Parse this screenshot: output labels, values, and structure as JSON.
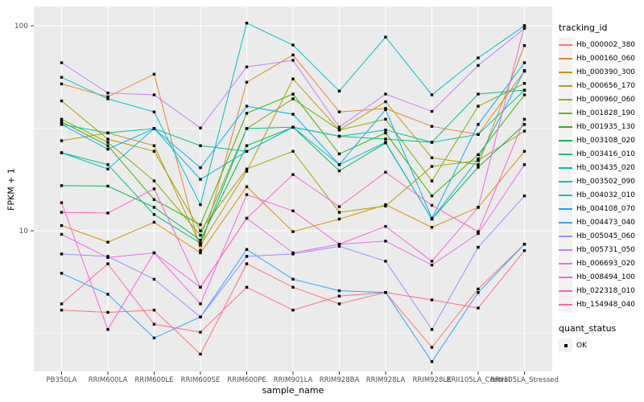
{
  "chart_data": {
    "type": "line",
    "title": "",
    "xlabel": "sample_name",
    "ylabel": "FPKM + 1",
    "y_scale": "log10",
    "ylim": [
      2.05,
      124
    ],
    "y_ticks": [
      10,
      100
    ],
    "y_minor_gridlines": [
      3.162,
      31.62
    ],
    "grid": true,
    "legend_position": "right",
    "panel_bg": "#EBEBEB",
    "gridline_color": "#FFFFFF",
    "tick_label_color": "#4D4D4D",
    "axis_title_color": "#000000",
    "point_marker": {
      "shape": "square",
      "color": "#000000"
    },
    "legend_title": "tracking_id",
    "quant_legend": {
      "title": "quant_status",
      "items": [
        {
          "label": "OK",
          "marker": "black-square"
        }
      ]
    },
    "x_categories": [
      "PB350LA",
      "RRIM600LA",
      "RRIM600LE",
      "RRIM600SE",
      "RRIM600PE",
      "RRIM901LA",
      "RRIM928BA",
      "RRIM928LA",
      "RRIM928LE",
      "RRII105LA_Control",
      "RRII105LA_Stressed"
    ],
    "series": [
      {
        "name": "Hb_000002_380",
        "color": "#F8766D",
        "values": [
          4.1,
          4.0,
          4.1,
          2.5,
          6.9,
          5.3,
          4.4,
          5.0,
          2.7,
          5.2,
          8.6
        ]
      },
      {
        "name": "Hb_000160_060",
        "color": "#EA8331",
        "values": [
          52,
          45,
          58,
          8.0,
          53,
          72,
          38,
          39.5,
          32.3,
          29.5,
          60
        ]
      },
      {
        "name": "Hb_000390_300",
        "color": "#D89000",
        "values": [
          10.6,
          8.8,
          11.0,
          7.8,
          16.4,
          9.9,
          11.4,
          13.4,
          10.4,
          13.0,
          24.4
        ]
      },
      {
        "name": "Hb_000656_170",
        "color": "#C09B00",
        "values": [
          27.5,
          30,
          26,
          8.5,
          19.5,
          55,
          31,
          42.6,
          22.7,
          21,
          80
        ]
      },
      {
        "name": "Hb_000960_060",
        "color": "#A3A500",
        "values": [
          43,
          28,
          24.4,
          10,
          20,
          24.4,
          12.3,
          13.2,
          20.6,
          22,
          30.6
        ]
      },
      {
        "name": "Hb_001828_190",
        "color": "#7CAE00",
        "values": [
          35,
          27,
          17.5,
          9.5,
          31.5,
          44,
          31,
          35,
          17.5,
          40.5,
          52.3
        ]
      },
      {
        "name": "Hb_001935_130",
        "color": "#39B600",
        "values": [
          34,
          26,
          14.2,
          10.7,
          37.4,
          46.4,
          23.7,
          30,
          14.8,
          23.5,
          46
        ]
      },
      {
        "name": "Hb_003108_020",
        "color": "#00BB4E",
        "values": [
          16.6,
          16.5,
          13.0,
          9.0,
          26,
          32,
          19.6,
          26.8,
          11.4,
          20.4,
          33
        ]
      },
      {
        "name": "Hb_003416_010",
        "color": "#00BF7D",
        "values": [
          24,
          21,
          12.0,
          8.7,
          31.5,
          32,
          28.9,
          28,
          27,
          46.4,
          48.5
        ]
      },
      {
        "name": "Hb_003435_020",
        "color": "#00C1A3",
        "values": [
          33,
          30,
          31.5,
          26,
          24.4,
          32,
          28.9,
          31,
          27,
          29.5,
          48.5
        ]
      },
      {
        "name": "Hb_003502_090",
        "color": "#00BFC4",
        "values": [
          56,
          44,
          38,
          13.4,
          103,
          80.5,
          48,
          88,
          46,
          69.7,
          100
        ]
      },
      {
        "name": "Hb_004032_010",
        "color": "#00BBDB",
        "values": [
          24,
          20,
          31.5,
          17.8,
          24.4,
          32,
          21,
          27,
          11.4,
          22.4,
          60.5
        ]
      },
      {
        "name": "Hb_004108_070",
        "color": "#00B0F6",
        "values": [
          33,
          25,
          31.5,
          20.3,
          40.5,
          37,
          21,
          39,
          11.5,
          33,
          66
        ]
      },
      {
        "name": "Hb_004473_040",
        "color": "#35A2FF",
        "values": [
          6.2,
          4.9,
          3.0,
          3.8,
          8.1,
          5.8,
          5.1,
          5.0,
          2.3,
          5.0,
          8.6
        ]
      },
      {
        "name": "Hb_005045_060",
        "color": "#9590FF",
        "values": [
          7.7,
          7.5,
          5.8,
          3.8,
          7.5,
          7.7,
          8.4,
          7.1,
          3.3,
          8.3,
          14.8
        ]
      },
      {
        "name": "Hb_005731_050",
        "color": "#C77CFF",
        "values": [
          66,
          47,
          46,
          31.7,
          63,
          67.8,
          32,
          46.4,
          38.2,
          64,
          97
        ]
      },
      {
        "name": "Hb_006693_020",
        "color": "#E76BF3",
        "values": [
          9.6,
          7.4,
          7.8,
          5.3,
          11.5,
          7.8,
          8.6,
          8.9,
          6.8,
          9.7,
          21
        ]
      },
      {
        "name": "Hb_008494_100",
        "color": "#FA62DB",
        "values": [
          13.7,
          3.3,
          7.8,
          4.4,
          15,
          12.5,
          8.6,
          10.5,
          7.1,
          13,
          100
        ]
      },
      {
        "name": "Hb_022318_010",
        "color": "#FF61C3",
        "values": [
          12.3,
          12.2,
          16,
          5.3,
          11.5,
          18.8,
          13.1,
          19.3,
          13.3,
          9.9,
          35
        ]
      },
      {
        "name": "Hb_154948_040",
        "color": "#FF6A98",
        "values": [
          4.4,
          6.9,
          3.5,
          3.2,
          5.3,
          4.1,
          4.8,
          5.0,
          4.6,
          4.2,
          8.0
        ]
      }
    ]
  }
}
